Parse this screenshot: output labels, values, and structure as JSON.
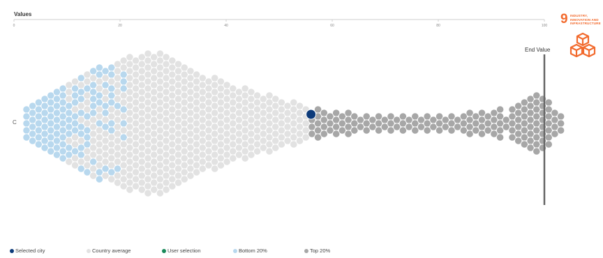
{
  "chart_data": {
    "type": "scatter",
    "subtype": "beeswarm",
    "xlabel": "Values",
    "x_ticks": [
      "0",
      "20",
      "40",
      "60",
      "80",
      "100"
    ],
    "xlim": [
      0,
      100
    ],
    "reference_line": {
      "label": "End Value",
      "x": 100
    },
    "left_label": "C",
    "selected_city": {
      "x": 56
    },
    "groups": [
      {
        "name": "Bottom 20%",
        "x_range": [
          0,
          20
        ],
        "color": "#b8d8ee"
      },
      {
        "name": "Country average",
        "x_range": [
          0,
          60
        ],
        "color": "#e2e2e2"
      },
      {
        "name": "Top 20%",
        "x_range": [
          53,
          105
        ],
        "color": "#a7a7a7"
      }
    ]
  },
  "legend": [
    {
      "label": "Selected city",
      "color": "#0d3b7a"
    },
    {
      "label": "Country average",
      "color": "#e2e2e2"
    },
    {
      "label": "User selection",
      "color": "#1a8a5a"
    },
    {
      "label": "Bottom 20%",
      "color": "#b8d8ee"
    },
    {
      "label": "Top 20%",
      "color": "#a7a7a7"
    }
  ],
  "sdg": {
    "number": "9",
    "title": "INDUSTRY, INNOVATION AND INFRASTRUCTURE",
    "color": "#f26a2d"
  }
}
